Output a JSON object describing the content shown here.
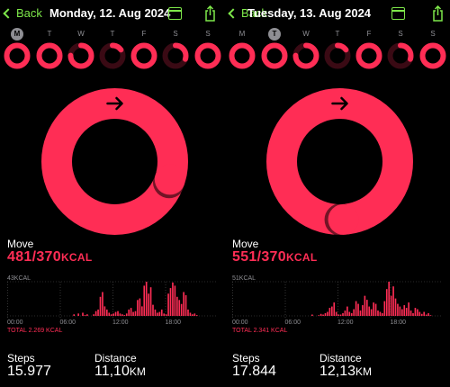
{
  "colors": {
    "move": "#ff2d55",
    "accent": "#7ee84a",
    "dim_ring": "#3a0a14"
  },
  "panels": [
    {
      "back_label": "Back",
      "date": "Monday, 12. Aug 2024",
      "weekdays": [
        "M",
        "T",
        "W",
        "T",
        "F",
        "S",
        "S"
      ],
      "selected_day": 0,
      "week_rings": [
        1.0,
        1.0,
        0.75,
        0.15,
        1.0,
        0.3,
        1.0
      ],
      "big_ring_progress": 1.3,
      "move_label": "Move",
      "move_value": "481/370",
      "move_unit": "KCAL",
      "chart_peak_label": "43KCAL",
      "time_labels": [
        "00:00",
        "06:00",
        "12:00",
        "18:00"
      ],
      "total_label": "TOTAL 2.269 KCAL",
      "hourly_kcal": [
        0,
        0,
        0,
        0,
        0,
        0,
        0,
        0,
        0,
        0,
        0,
        0,
        0,
        0,
        0,
        0,
        0,
        0,
        0,
        0,
        0,
        0,
        0,
        0,
        0,
        0,
        0,
        0,
        0,
        0,
        2,
        0,
        3,
        0,
        4,
        1,
        2,
        0,
        0,
        2,
        6,
        8,
        24,
        30,
        12,
        8,
        4,
        2,
        3,
        5,
        6,
        3,
        2,
        1,
        3,
        8,
        10,
        5,
        6,
        20,
        22,
        12,
        38,
        43,
        28,
        36,
        14,
        8,
        4,
        5,
        8,
        3,
        2,
        28,
        35,
        42,
        38,
        24,
        20,
        15,
        30,
        26,
        8,
        4,
        2,
        3,
        1,
        0,
        0,
        0,
        0,
        0,
        0,
        0,
        0,
        0
      ],
      "steps_label": "Steps",
      "steps_value": "15.977",
      "distance_label": "Distance",
      "distance_value": "11,10",
      "distance_unit": "KM"
    },
    {
      "back_label": "Back",
      "date": "Tuesday, 13. Aug 2024",
      "weekdays": [
        "M",
        "T",
        "W",
        "T",
        "F",
        "S",
        "S"
      ],
      "selected_day": 1,
      "week_rings": [
        1.0,
        1.0,
        0.75,
        0.15,
        1.0,
        0.3,
        1.0
      ],
      "big_ring_progress": 1.49,
      "move_label": "Move",
      "move_value": "551/370",
      "move_unit": "KCAL",
      "chart_peak_label": "51KCAL",
      "time_labels": [
        "00:00",
        "06:00",
        "12:00",
        "18:00"
      ],
      "total_label": "TOTAL 2.341 KCAL",
      "hourly_kcal": [
        0,
        0,
        0,
        0,
        0,
        0,
        0,
        0,
        0,
        0,
        0,
        0,
        0,
        0,
        0,
        0,
        0,
        0,
        0,
        0,
        0,
        0,
        0,
        0,
        0,
        0,
        0,
        0,
        0,
        0,
        0,
        0,
        0,
        0,
        0,
        0,
        2,
        0,
        0,
        1,
        3,
        2,
        4,
        6,
        12,
        14,
        20,
        6,
        2,
        2,
        4,
        8,
        14,
        6,
        4,
        10,
        22,
        18,
        8,
        16,
        30,
        24,
        14,
        10,
        20,
        18,
        8,
        6,
        4,
        22,
        40,
        51,
        30,
        44,
        26,
        18,
        14,
        10,
        16,
        12,
        20,
        8,
        4,
        12,
        10,
        6,
        3,
        6,
        2,
        4,
        1,
        0,
        0,
        0,
        0,
        0
      ],
      "steps_label": "Steps",
      "steps_value": "17.844",
      "distance_label": "Distance",
      "distance_value": "12,13",
      "distance_unit": "KM"
    }
  ]
}
